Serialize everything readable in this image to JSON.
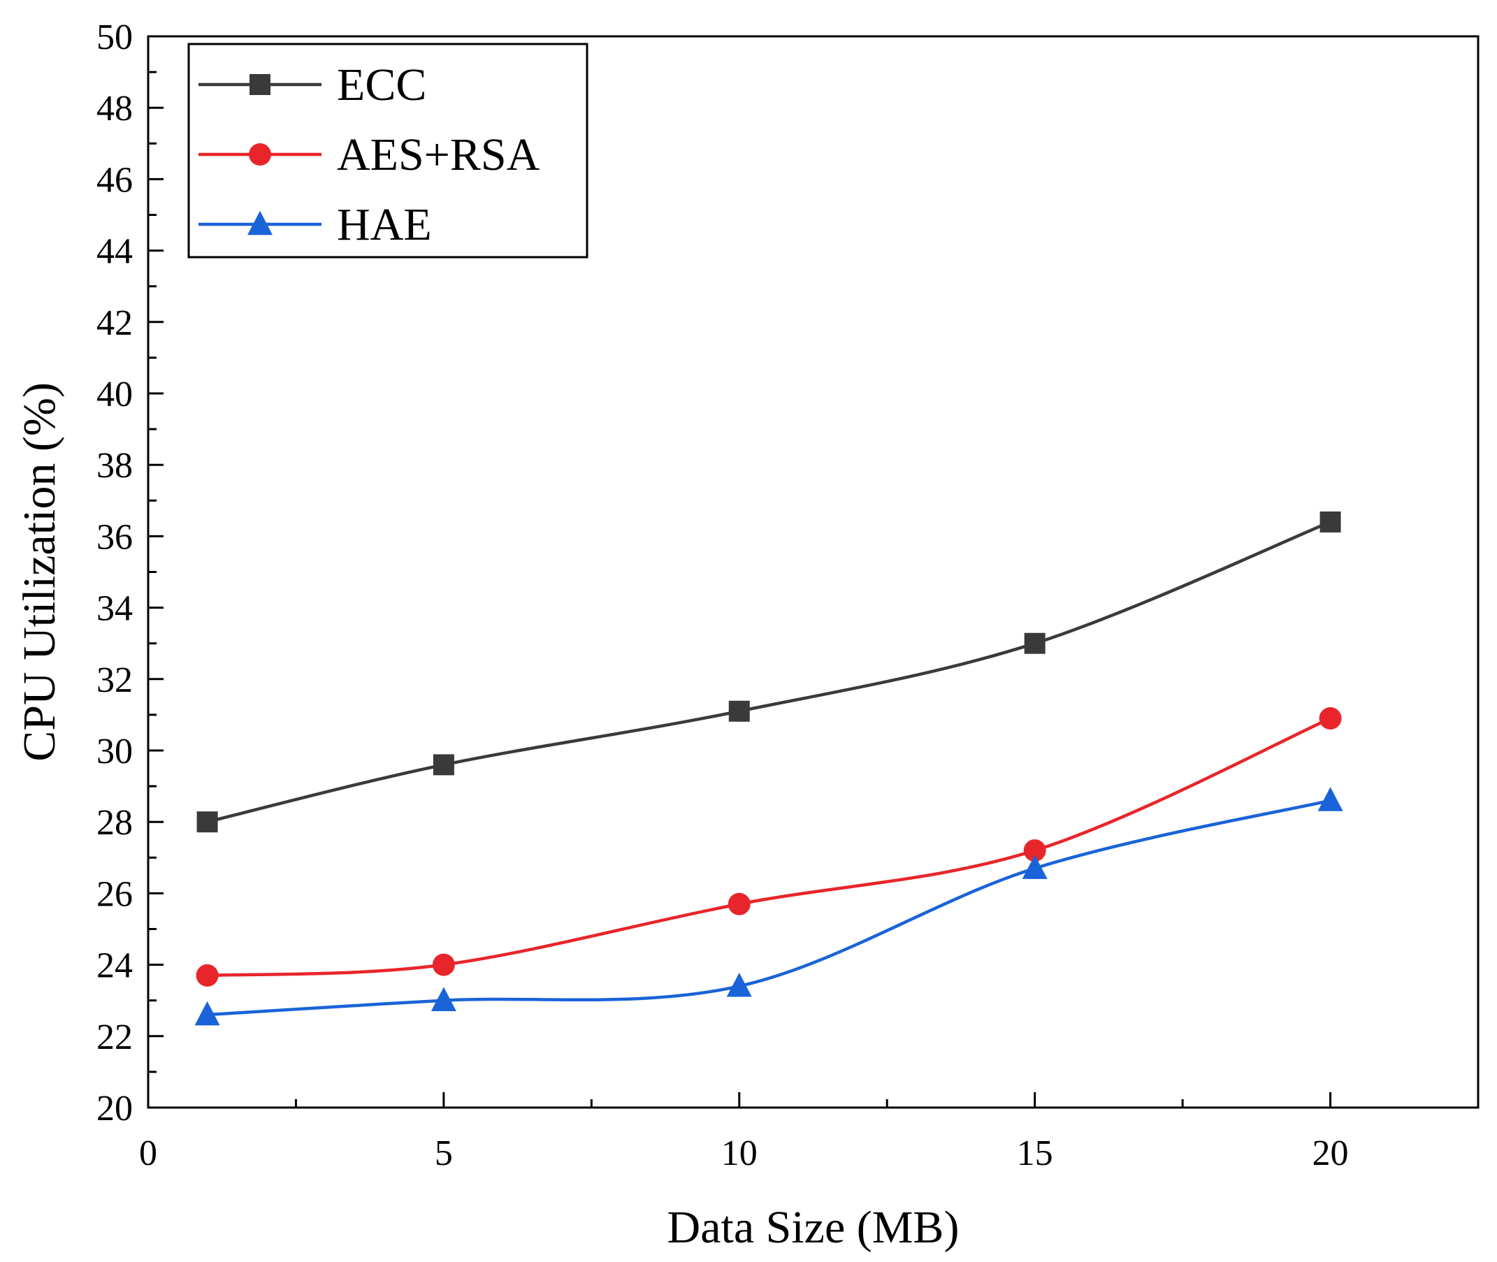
{
  "chart_data": {
    "type": "line",
    "title": "",
    "xlabel": "Data Size (MB)",
    "ylabel": "CPU Utilization (%)",
    "xlim": [
      0,
      22.5
    ],
    "ylim": [
      20,
      50
    ],
    "x_ticks": [
      0,
      5,
      10,
      15,
      20
    ],
    "y_ticks": [
      20,
      22,
      24,
      26,
      28,
      30,
      32,
      34,
      36,
      38,
      40,
      42,
      44,
      46,
      48,
      50
    ],
    "grid": false,
    "legend_position": "top-left",
    "x": [
      1,
      5,
      10,
      15,
      20
    ],
    "series": [
      {
        "name": "ECC",
        "color": "#3a3a3a",
        "marker": "square",
        "values": [
          28.0,
          29.6,
          31.1,
          33.0,
          36.4
        ]
      },
      {
        "name": "AES+RSA",
        "color": "#e8252a",
        "marker": "circle",
        "values": [
          23.7,
          24.0,
          25.7,
          27.2,
          30.9
        ]
      },
      {
        "name": "HAE",
        "color": "#1a63d8",
        "marker": "triangle",
        "values": [
          22.6,
          23.0,
          23.4,
          26.7,
          28.6
        ]
      }
    ]
  }
}
